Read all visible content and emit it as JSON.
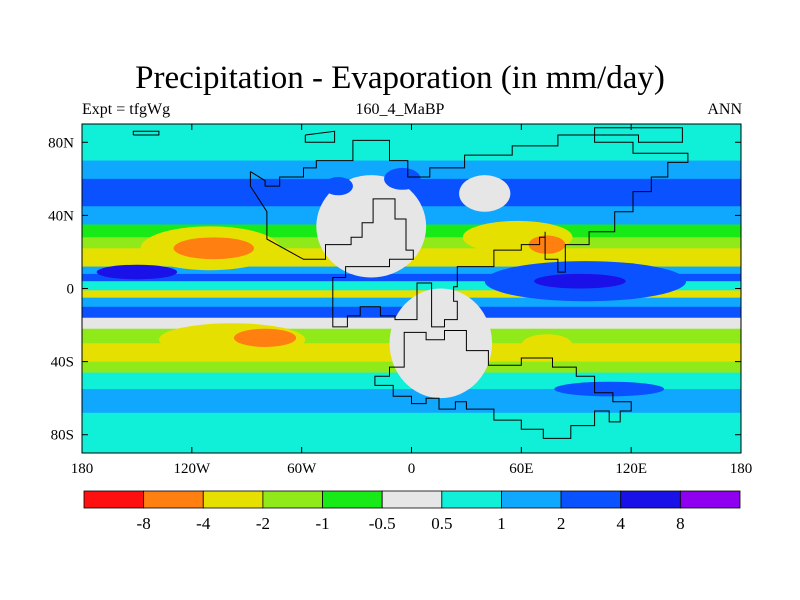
{
  "title": "Precipitation - Evaporation (in mm/day)",
  "subtitle_left": "Expt = tfgWg",
  "subtitle_center": "160_4_MaBP",
  "subtitle_right": "ANN",
  "colors": {
    "lt_m8": "#ff1010",
    "m8_m4": "#ff7f10",
    "m4_m2": "#e6e000",
    "m2_m1": "#90ea1a",
    "m1_m05": "#18ea18",
    "m05_05": "#e6e6e6",
    "p05_1": "#10efd8",
    "p1_2": "#10a8ff",
    "p2_4": "#0a52ff",
    "p4_8": "#1a10e8",
    "gt_8": "#9000f0",
    "coast": "#000000"
  },
  "chart_data": {
    "type": "filled-contour-map",
    "projection": "cylindrical equidistant",
    "xlim": [
      -180,
      180
    ],
    "ylim": [
      -90,
      90
    ],
    "x_ticks": [
      {
        "value": -180,
        "label": "180"
      },
      {
        "value": -120,
        "label": "120W"
      },
      {
        "value": -60,
        "label": "60W"
      },
      {
        "value": 0,
        "label": "0"
      },
      {
        "value": 60,
        "label": "60E"
      },
      {
        "value": 120,
        "label": "120E"
      },
      {
        "value": 180,
        "label": "180"
      }
    ],
    "y_ticks": [
      {
        "value": 80,
        "label": "80N"
      },
      {
        "value": 40,
        "label": "40N"
      },
      {
        "value": 0,
        "label": "0"
      },
      {
        "value": -40,
        "label": "40S"
      },
      {
        "value": -80,
        "label": "80S"
      }
    ],
    "colorbar": {
      "levels": [
        -8,
        -4,
        -2,
        -1,
        -0.5,
        0.5,
        1,
        2,
        4,
        8
      ],
      "labels": [
        "-8",
        "-4",
        "-2",
        "-1",
        "-0.5",
        "0.5",
        "1",
        "2",
        "4",
        "8"
      ],
      "bin_colors": [
        "lt_m8",
        "m8_m4",
        "m4_m2",
        "m2_m1",
        "m1_m05",
        "m05_05",
        "p05_1",
        "p1_2",
        "p2_4",
        "p4_8",
        "gt_8"
      ]
    },
    "zonal_bands": [
      {
        "lat": [
          80,
          90
        ],
        "bin": "p05_1"
      },
      {
        "lat": [
          70,
          80
        ],
        "bin": "p05_1"
      },
      {
        "lat": [
          60,
          70
        ],
        "bin": "p1_2"
      },
      {
        "lat": [
          45,
          60
        ],
        "bin": "p2_4"
      },
      {
        "lat": [
          35,
          45
        ],
        "bin": "p1_2"
      },
      {
        "lat": [
          28,
          35
        ],
        "bin": "m1_m05"
      },
      {
        "lat": [
          22,
          28
        ],
        "bin": "m2_m1"
      },
      {
        "lat": [
          12,
          22
        ],
        "bin": "m4_m2"
      },
      {
        "lat": [
          8,
          12
        ],
        "bin": "p1_2"
      },
      {
        "lat": [
          4,
          8
        ],
        "bin": "p2_4"
      },
      {
        "lat": [
          -1,
          4
        ],
        "bin": "p05_1"
      },
      {
        "lat": [
          -5,
          -1
        ],
        "bin": "m4_m2"
      },
      {
        "lat": [
          -10,
          -5
        ],
        "bin": "p1_2"
      },
      {
        "lat": [
          -16,
          -10
        ],
        "bin": "p2_4"
      },
      {
        "lat": [
          -22,
          -16
        ],
        "bin": "m05_05"
      },
      {
        "lat": [
          -30,
          -22
        ],
        "bin": "m2_m1"
      },
      {
        "lat": [
          -40,
          -30
        ],
        "bin": "m4_m2"
      },
      {
        "lat": [
          -46,
          -40
        ],
        "bin": "m2_m1"
      },
      {
        "lat": [
          -55,
          -46
        ],
        "bin": "p05_1"
      },
      {
        "lat": [
          -68,
          -55
        ],
        "bin": "p1_2"
      },
      {
        "lat": [
          -90,
          -68
        ],
        "bin": "p05_1"
      }
    ],
    "regions": [
      {
        "bin": "m4_m2",
        "center": [
          -110,
          22
        ],
        "radius": [
          38,
          12
        ]
      },
      {
        "bin": "m8_m4",
        "center": [
          -108,
          22
        ],
        "radius": [
          22,
          6
        ]
      },
      {
        "bin": "m4_m2",
        "center": [
          -98,
          -28
        ],
        "radius": [
          40,
          9
        ]
      },
      {
        "bin": "m8_m4",
        "center": [
          -80,
          -27
        ],
        "radius": [
          17,
          5
        ]
      },
      {
        "bin": "m4_m2",
        "center": [
          58,
          28
        ],
        "radius": [
          30,
          9
        ]
      },
      {
        "bin": "m8_m4",
        "center": [
          74,
          24
        ],
        "radius": [
          10,
          5
        ]
      },
      {
        "bin": "p2_4",
        "center": [
          95,
          4
        ],
        "radius": [
          55,
          11
        ]
      },
      {
        "bin": "p4_8",
        "center": [
          92,
          4
        ],
        "radius": [
          25,
          4
        ]
      },
      {
        "bin": "m4_m2",
        "center": [
          74,
          -31
        ],
        "radius": [
          14,
          6
        ]
      },
      {
        "bin": "m05_05",
        "center": [
          -22,
          34
        ],
        "radius": [
          30,
          28
        ]
      },
      {
        "bin": "m05_05",
        "center": [
          16,
          -30
        ],
        "radius": [
          28,
          30
        ]
      },
      {
        "bin": "m05_05",
        "center": [
          40,
          52
        ],
        "radius": [
          14,
          10
        ]
      },
      {
        "bin": "p2_4",
        "center": [
          -40,
          56
        ],
        "radius": [
          8,
          5
        ]
      },
      {
        "bin": "p2_4",
        "center": [
          -5,
          60
        ],
        "radius": [
          10,
          6
        ]
      },
      {
        "bin": "p2_4",
        "center": [
          108,
          -55
        ],
        "radius": [
          30,
          4
        ]
      },
      {
        "bin": "p4_8",
        "center": [
          -150,
          9
        ],
        "radius": [
          22,
          4
        ]
      }
    ],
    "coastlines": [
      {
        "name": "north-america-europe",
        "points": [
          [
            -88,
            64
          ],
          [
            -88,
            56
          ],
          [
            -79,
            42
          ],
          [
            -79,
            27
          ],
          [
            -59,
            16
          ],
          [
            -47,
            16
          ],
          [
            -47,
            24
          ],
          [
            -33,
            24
          ],
          [
            -33,
            28
          ],
          [
            -27,
            28
          ],
          [
            -27,
            36
          ],
          [
            -21,
            36
          ],
          [
            -21,
            49
          ],
          [
            -9,
            49
          ],
          [
            -9,
            38
          ],
          [
            -3,
            38
          ],
          [
            -3,
            21
          ],
          [
            1,
            21
          ],
          [
            1,
            16
          ],
          [
            -12,
            16
          ],
          [
            -12,
            12
          ],
          [
            -36,
            12
          ],
          [
            -36,
            6
          ],
          [
            -43,
            6
          ],
          [
            -43,
            -21
          ],
          [
            -35,
            -21
          ],
          [
            -35,
            -15
          ],
          [
            -28,
            -15
          ],
          [
            -28,
            -10
          ],
          [
            -17,
            -10
          ],
          [
            -17,
            -15
          ],
          [
            -9,
            -15
          ],
          [
            -9,
            -17
          ],
          [
            3,
            -17
          ],
          [
            3,
            3
          ],
          [
            11,
            3
          ],
          [
            11,
            -21
          ],
          [
            18,
            -21
          ],
          [
            18,
            -17
          ],
          [
            25,
            -17
          ],
          [
            25,
            -7
          ],
          [
            23,
            -7
          ],
          [
            23,
            1
          ],
          [
            25,
            1
          ],
          [
            25,
            12
          ],
          [
            45,
            12
          ],
          [
            45,
            21
          ],
          [
            60,
            21
          ],
          [
            60,
            24
          ],
          [
            70,
            24
          ],
          [
            70,
            28
          ],
          [
            73,
            28
          ],
          [
            73,
            31
          ],
          [
            73,
            16
          ],
          [
            80,
            16
          ],
          [
            80,
            9
          ],
          [
            84,
            9
          ],
          [
            84,
            24
          ],
          [
            97,
            24
          ],
          [
            97,
            31
          ],
          [
            111,
            31
          ],
          [
            111,
            42
          ],
          [
            121,
            42
          ],
          [
            121,
            53
          ],
          [
            131,
            53
          ],
          [
            131,
            61
          ],
          [
            140,
            61
          ],
          [
            140,
            69
          ],
          [
            151,
            69
          ],
          [
            151,
            74
          ],
          [
            121,
            74
          ],
          [
            121,
            80
          ],
          [
            100,
            80
          ],
          [
            100,
            84
          ],
          [
            80,
            84
          ],
          [
            80,
            78
          ],
          [
            55,
            78
          ],
          [
            55,
            73
          ],
          [
            29,
            73
          ],
          [
            29,
            66
          ],
          [
            10,
            66
          ],
          [
            10,
            61
          ],
          [
            -2,
            61
          ],
          [
            -2,
            70
          ],
          [
            -12,
            70
          ],
          [
            -12,
            81
          ],
          [
            -32,
            81
          ],
          [
            -32,
            70
          ],
          [
            -52,
            70
          ],
          [
            -52,
            66
          ],
          [
            -59,
            66
          ],
          [
            -59,
            61
          ],
          [
            -72,
            61
          ],
          [
            -72,
            56
          ],
          [
            -80,
            56
          ],
          [
            -80,
            59
          ],
          [
            -88,
            64
          ]
        ]
      },
      {
        "name": "southern-continent",
        "points": [
          [
            0,
            -24
          ],
          [
            -4,
            -24
          ],
          [
            -4,
            -43
          ],
          [
            -12,
            -43
          ],
          [
            -12,
            -48
          ],
          [
            -20,
            -48
          ],
          [
            -20,
            -53
          ],
          [
            -10,
            -53
          ],
          [
            -10,
            -59
          ],
          [
            0,
            -59
          ],
          [
            0,
            -63
          ],
          [
            8,
            -63
          ],
          [
            8,
            -60
          ],
          [
            15,
            -60
          ],
          [
            15,
            -66
          ],
          [
            24,
            -66
          ],
          [
            24,
            -62
          ],
          [
            30,
            -62
          ],
          [
            30,
            -66
          ],
          [
            45,
            -66
          ],
          [
            45,
            -72
          ],
          [
            60,
            -72
          ],
          [
            60,
            -77
          ],
          [
            72,
            -77
          ],
          [
            72,
            -82
          ],
          [
            87,
            -82
          ],
          [
            87,
            -75
          ],
          [
            100,
            -75
          ],
          [
            100,
            -67
          ],
          [
            108,
            -67
          ],
          [
            108,
            -73
          ],
          [
            114,
            -73
          ],
          [
            114,
            -67
          ],
          [
            120,
            -67
          ],
          [
            120,
            -62
          ],
          [
            110,
            -62
          ],
          [
            110,
            -57
          ],
          [
            100,
            -57
          ],
          [
            100,
            -48
          ],
          [
            90,
            -48
          ],
          [
            90,
            -43
          ],
          [
            77,
            -43
          ],
          [
            77,
            -38
          ],
          [
            60,
            -38
          ],
          [
            60,
            -42
          ],
          [
            42,
            -42
          ],
          [
            42,
            -34
          ],
          [
            30,
            -34
          ],
          [
            30,
            -23
          ],
          [
            18,
            -23
          ],
          [
            18,
            -28
          ],
          [
            8,
            -28
          ],
          [
            8,
            -24
          ],
          [
            0,
            -24
          ]
        ]
      },
      {
        "name": "arctic-island",
        "points": [
          [
            -58,
            84
          ],
          [
            -58,
            80
          ],
          [
            -42,
            80
          ],
          [
            -42,
            86
          ],
          [
            -58,
            84
          ]
        ]
      },
      {
        "name": "northeast-island",
        "points": [
          [
            100,
            84
          ],
          [
            100,
            88
          ],
          [
            148,
            88
          ],
          [
            148,
            80
          ],
          [
            124,
            80
          ],
          [
            124,
            84
          ],
          [
            100,
            84
          ]
        ]
      },
      {
        "name": "west-island",
        "points": [
          [
            -152,
            84
          ],
          [
            -152,
            86
          ],
          [
            -138,
            86
          ],
          [
            -138,
            84
          ],
          [
            -152,
            84
          ]
        ]
      }
    ]
  }
}
